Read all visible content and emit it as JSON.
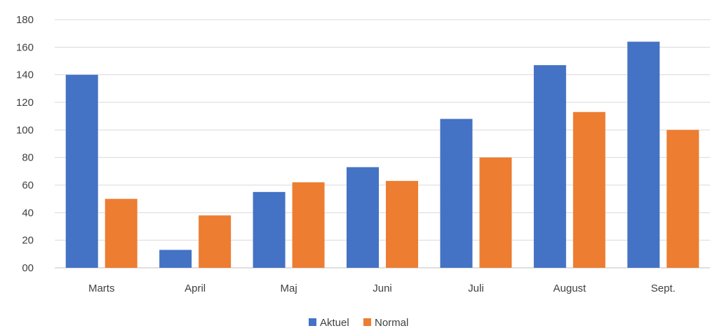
{
  "chart_data": {
    "type": "bar",
    "categories": [
      "Marts",
      "April",
      "Maj",
      "Juni",
      "Juli",
      "August",
      "Sept."
    ],
    "series": [
      {
        "name": "Aktuel",
        "color": "#4472C4",
        "values": [
          140,
          13,
          55,
          73,
          108,
          147,
          164
        ]
      },
      {
        "name": "Normal",
        "color": "#ED7D31",
        "values": [
          50,
          38,
          62,
          63,
          80,
          113,
          100
        ]
      }
    ],
    "ylim": [
      0,
      180
    ],
    "yticks": [
      "00",
      "20",
      "40",
      "60",
      "80",
      "100",
      "120",
      "140",
      "160",
      "180"
    ],
    "grid": true,
    "legend_position": "bottom"
  }
}
